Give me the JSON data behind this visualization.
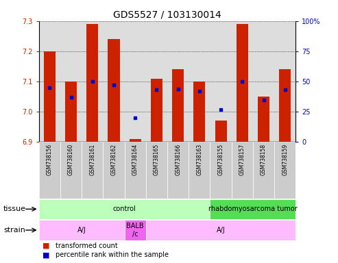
{
  "title": "GDS5527 / 103130014",
  "samples": [
    "GSM738156",
    "GSM738160",
    "GSM738161",
    "GSM738162",
    "GSM738164",
    "GSM738165",
    "GSM738166",
    "GSM738163",
    "GSM738155",
    "GSM738157",
    "GSM738158",
    "GSM738159"
  ],
  "red_values": [
    7.2,
    7.1,
    7.29,
    7.24,
    6.91,
    7.11,
    7.14,
    7.1,
    6.97,
    7.29,
    7.05,
    7.14
  ],
  "blue_percentiles": [
    45,
    37,
    50,
    47,
    20,
    43,
    44,
    42,
    27,
    50,
    35,
    43
  ],
  "ylim_left": [
    6.9,
    7.3
  ],
  "ylim_right": [
    0,
    100
  ],
  "yticks_left": [
    6.9,
    7.0,
    7.1,
    7.2,
    7.3
  ],
  "yticks_right": [
    0,
    25,
    50,
    75,
    100
  ],
  "bar_color": "#cc2200",
  "dot_color": "#0000cc",
  "bar_bottom": 6.9,
  "tissue_labels": [
    {
      "text": "control",
      "start": 0,
      "end": 7,
      "color": "#bbffbb"
    },
    {
      "text": "rhabdomyosarcoma tumor",
      "start": 8,
      "end": 11,
      "color": "#55dd55"
    }
  ],
  "strain_labels": [
    {
      "text": "A/J",
      "start": 0,
      "end": 3,
      "color": "#ffbbff"
    },
    {
      "text": "BALB\n/c",
      "start": 4,
      "end": 4,
      "color": "#ee66ee"
    },
    {
      "text": "A/J",
      "start": 5,
      "end": 11,
      "color": "#ffbbff"
    }
  ],
  "legend_red": "transformed count",
  "legend_blue": "percentile rank within the sample",
  "tissue_label": "tissue",
  "strain_label": "strain",
  "background_color": "#ffffff",
  "sample_box_color": "#cccccc",
  "title_fontsize": 10,
  "tick_fontsize": 7,
  "sample_fontsize": 5.5,
  "annot_fontsize": 8,
  "legend_fontsize": 7
}
